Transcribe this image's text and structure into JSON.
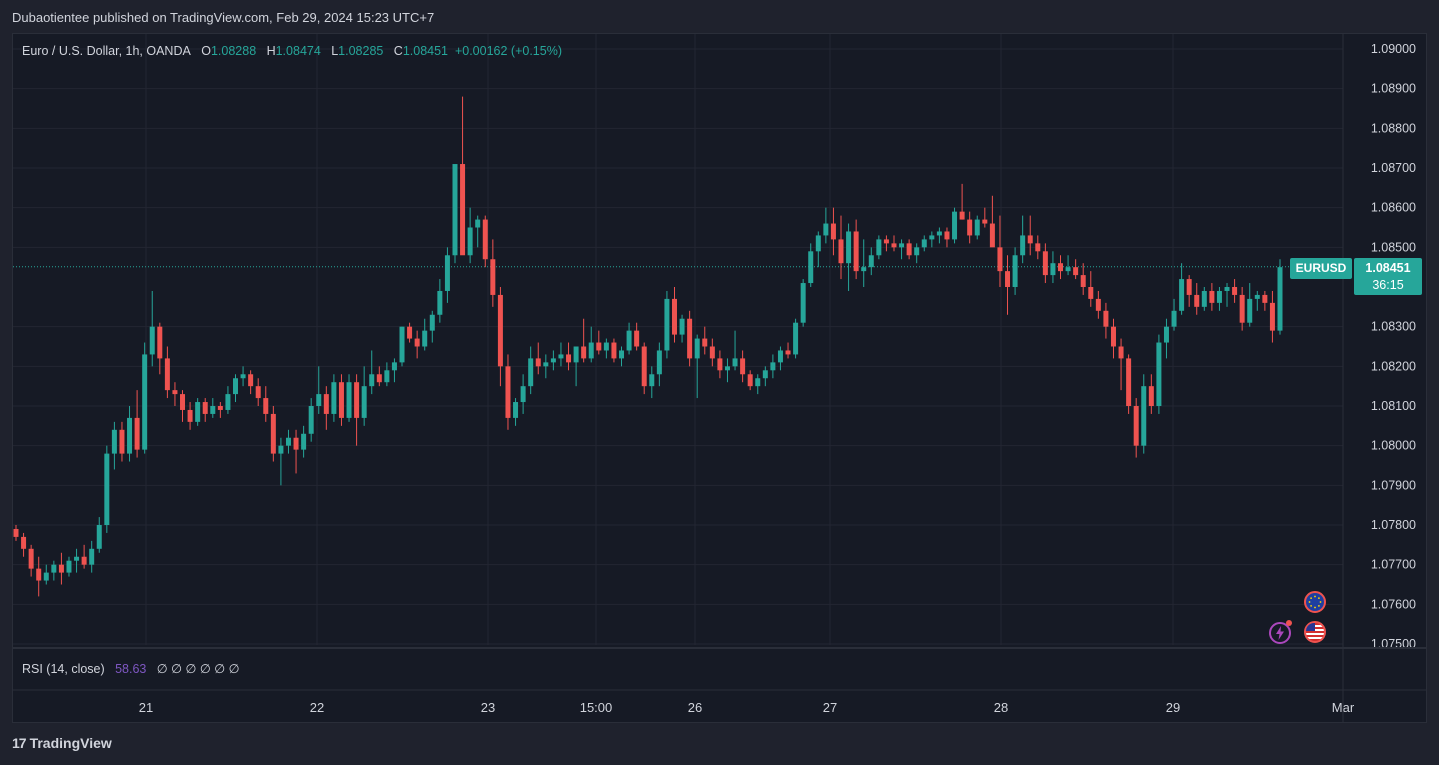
{
  "publisher_line": "Dubaotientee published on TradingView.com, Feb 29, 2024 15:23 UTC+7",
  "legend": {
    "symbol": "Euro / U.S. Dollar, 1h, OANDA",
    "o_label": "O",
    "o_value": "1.08288",
    "h_label": "H",
    "h_value": "1.08474",
    "l_label": "L",
    "l_value": "1.08285",
    "c_label": "C",
    "c_value": "1.08451",
    "change": "+0.00162 (+0.15%)"
  },
  "rsi": {
    "label": "RSI (14, close)",
    "value": "58.63",
    "placeholders": "∅ ∅ ∅ ∅ ∅ ∅"
  },
  "price_tag": {
    "symbol": "EURUSD",
    "price": "1.08451",
    "countdown": "36:15"
  },
  "footer": {
    "brand": "TradingView",
    "logo": "17"
  },
  "icons": {
    "flash": "flash-icon",
    "eu_flag": "eu-flag-icon",
    "us_flag": "us-flag-icon"
  },
  "colors": {
    "up": "#26a69a",
    "down": "#ef5350",
    "rsi": "#7e57c2",
    "bg": "#161a25"
  },
  "chart_data": {
    "type": "candlestick",
    "title": "Euro / U.S. Dollar, 1h, OANDA",
    "y_ticks": [
      "1.09000",
      "1.08900",
      "1.08800",
      "1.08700",
      "1.08600",
      "1.08500",
      "1.08300",
      "1.08200",
      "1.08100",
      "1.08000",
      "1.07900",
      "1.07800",
      "1.07700",
      "1.07600",
      "1.07500"
    ],
    "ylim": [
      1.075,
      1.09
    ],
    "x_ticks": [
      "21",
      "22",
      "23",
      "15:00",
      "26",
      "27",
      "28",
      "29",
      "Mar"
    ],
    "current_price": 1.08451,
    "grid": true,
    "series": [
      {
        "name": "EURUSD",
        "ohlc_path": [
          [
            1.0779,
            1.078,
            1.0776,
            1.0777
          ],
          [
            1.0777,
            1.0778,
            1.0772,
            1.0774
          ],
          [
            1.0774,
            1.0775,
            1.0767,
            1.0769
          ],
          [
            1.0769,
            1.0772,
            1.0762,
            1.0766
          ],
          [
            1.0766,
            1.077,
            1.0765,
            1.0768
          ],
          [
            1.0768,
            1.0771,
            1.0766,
            1.077
          ],
          [
            1.077,
            1.0773,
            1.0765,
            1.0768
          ],
          [
            1.0768,
            1.0772,
            1.0767,
            1.0771
          ],
          [
            1.0771,
            1.0774,
            1.0768,
            1.0772
          ],
          [
            1.0772,
            1.0775,
            1.0769,
            1.077
          ],
          [
            1.077,
            1.0776,
            1.0768,
            1.0774
          ],
          [
            1.0774,
            1.0782,
            1.0773,
            1.078
          ],
          [
            1.078,
            1.08,
            1.0778,
            1.0798
          ],
          [
            1.0798,
            1.0806,
            1.0794,
            1.0804
          ],
          [
            1.0804,
            1.0806,
            1.0796,
            1.0798
          ],
          [
            1.0798,
            1.081,
            1.0796,
            1.0807
          ],
          [
            1.0807,
            1.0814,
            1.0797,
            1.0799
          ],
          [
            1.0799,
            1.0826,
            1.0798,
            1.0823
          ],
          [
            1.0823,
            1.0839,
            1.082,
            1.083
          ],
          [
            1.083,
            1.0831,
            1.0818,
            1.0822
          ],
          [
            1.0822,
            1.0825,
            1.0812,
            1.0814
          ],
          [
            1.0814,
            1.0816,
            1.081,
            1.0813
          ],
          [
            1.0813,
            1.0814,
            1.0806,
            1.0809
          ],
          [
            1.0809,
            1.0811,
            1.0804,
            1.0806
          ],
          [
            1.0806,
            1.0812,
            1.0805,
            1.0811
          ],
          [
            1.0811,
            1.0812,
            1.0806,
            1.0808
          ],
          [
            1.0808,
            1.0812,
            1.0807,
            1.081
          ],
          [
            1.081,
            1.0811,
            1.0807,
            1.0809
          ],
          [
            1.0809,
            1.0815,
            1.0808,
            1.0813
          ],
          [
            1.0813,
            1.0818,
            1.0811,
            1.0817
          ],
          [
            1.0817,
            1.082,
            1.0815,
            1.0818
          ],
          [
            1.0818,
            1.0819,
            1.0813,
            1.0815
          ],
          [
            1.0815,
            1.0817,
            1.081,
            1.0812
          ],
          [
            1.0812,
            1.0815,
            1.0806,
            1.0808
          ],
          [
            1.0808,
            1.081,
            1.0796,
            1.0798
          ],
          [
            1.0798,
            1.0802,
            1.079,
            1.08
          ],
          [
            1.08,
            1.0804,
            1.0798,
            1.0802
          ],
          [
            1.0802,
            1.0804,
            1.0793,
            1.0799
          ],
          [
            1.0799,
            1.0805,
            1.0797,
            1.0803
          ],
          [
            1.0803,
            1.0812,
            1.0801,
            1.081
          ],
          [
            1.081,
            1.082,
            1.0808,
            1.0813
          ],
          [
            1.0813,
            1.0815,
            1.0804,
            1.0808
          ],
          [
            1.0808,
            1.0818,
            1.0806,
            1.0816
          ],
          [
            1.0816,
            1.0818,
            1.0805,
            1.0807
          ],
          [
            1.0807,
            1.0818,
            1.0806,
            1.0816
          ],
          [
            1.0816,
            1.0818,
            1.08,
            1.0807
          ],
          [
            1.0807,
            1.082,
            1.0805,
            1.0815
          ],
          [
            1.0815,
            1.0824,
            1.0813,
            1.0818
          ],
          [
            1.0818,
            1.082,
            1.0815,
            1.0816
          ],
          [
            1.0816,
            1.0821,
            1.0815,
            1.0819
          ],
          [
            1.0819,
            1.0822,
            1.0816,
            1.0821
          ],
          [
            1.0821,
            1.083,
            1.082,
            1.083
          ],
          [
            1.083,
            1.0831,
            1.0826,
            1.0827
          ],
          [
            1.0827,
            1.0829,
            1.0822,
            1.0825
          ],
          [
            1.0825,
            1.0832,
            1.0824,
            1.0829
          ],
          [
            1.0829,
            1.0834,
            1.0826,
            1.0833
          ],
          [
            1.0833,
            1.0842,
            1.0831,
            1.0839
          ],
          [
            1.0839,
            1.085,
            1.0836,
            1.0848
          ],
          [
            1.0848,
            1.0869,
            1.0846,
            1.0871
          ],
          [
            1.0871,
            1.0888,
            1.0867,
            1.0848
          ],
          [
            1.0848,
            1.086,
            1.0846,
            1.0855
          ],
          [
            1.0855,
            1.0858,
            1.085,
            1.0857
          ],
          [
            1.0857,
            1.0858,
            1.0845,
            1.0847
          ],
          [
            1.0847,
            1.0852,
            1.0835,
            1.0838
          ],
          [
            1.0838,
            1.084,
            1.0815,
            1.082
          ],
          [
            1.082,
            1.0823,
            1.0804,
            1.0807
          ],
          [
            1.0807,
            1.0812,
            1.0805,
            1.0811
          ],
          [
            1.0811,
            1.0818,
            1.0808,
            1.0815
          ],
          [
            1.0815,
            1.0825,
            1.0813,
            1.0822
          ],
          [
            1.0822,
            1.0826,
            1.0818,
            1.082
          ],
          [
            1.082,
            1.0823,
            1.0817,
            1.0821
          ],
          [
            1.0821,
            1.0824,
            1.0819,
            1.0822
          ],
          [
            1.0822,
            1.0826,
            1.082,
            1.0823
          ],
          [
            1.0823,
            1.0826,
            1.0819,
            1.0821
          ],
          [
            1.0821,
            1.0824,
            1.0815,
            1.0825
          ],
          [
            1.0825,
            1.0832,
            1.0821,
            1.0822
          ],
          [
            1.0822,
            1.083,
            1.0821,
            1.0826
          ],
          [
            1.0826,
            1.0829,
            1.0823,
            1.0824
          ],
          [
            1.0824,
            1.0827,
            1.0822,
            1.0826
          ],
          [
            1.0826,
            1.0827,
            1.0821,
            1.0822
          ],
          [
            1.0822,
            1.0825,
            1.082,
            1.0824
          ],
          [
            1.0824,
            1.0831,
            1.0823,
            1.0829
          ],
          [
            1.0829,
            1.0831,
            1.0824,
            1.0825
          ],
          [
            1.0825,
            1.0826,
            1.0813,
            1.0815
          ],
          [
            1.0815,
            1.082,
            1.0812,
            1.0818
          ],
          [
            1.0818,
            1.0826,
            1.0815,
            1.0824
          ],
          [
            1.0824,
            1.0839,
            1.0822,
            1.0837
          ],
          [
            1.0837,
            1.084,
            1.0826,
            1.0828
          ],
          [
            1.0828,
            1.0833,
            1.0826,
            1.0832
          ],
          [
            1.0832,
            1.0834,
            1.082,
            1.0822
          ],
          [
            1.0822,
            1.0828,
            1.0812,
            1.0827
          ],
          [
            1.0827,
            1.083,
            1.0823,
            1.0825
          ],
          [
            1.0825,
            1.0827,
            1.082,
            1.0822
          ],
          [
            1.0822,
            1.0824,
            1.0817,
            1.0819
          ],
          [
            1.0819,
            1.0822,
            1.0816,
            1.082
          ],
          [
            1.082,
            1.0829,
            1.0819,
            1.0822
          ],
          [
            1.0822,
            1.0824,
            1.0816,
            1.0818
          ],
          [
            1.0818,
            1.0819,
            1.0814,
            1.0815
          ],
          [
            1.0815,
            1.0818,
            1.0813,
            1.0817
          ],
          [
            1.0817,
            1.082,
            1.0815,
            1.0819
          ],
          [
            1.0819,
            1.0823,
            1.0817,
            1.0821
          ],
          [
            1.0821,
            1.0825,
            1.0819,
            1.0824
          ],
          [
            1.0824,
            1.0826,
            1.0822,
            1.0823
          ],
          [
            1.0823,
            1.0832,
            1.0822,
            1.0831
          ],
          [
            1.0831,
            1.0842,
            1.083,
            1.0841
          ],
          [
            1.0841,
            1.0851,
            1.084,
            1.0849
          ],
          [
            1.0849,
            1.0854,
            1.0845,
            1.0853
          ],
          [
            1.0853,
            1.086,
            1.0851,
            1.0856
          ],
          [
            1.0856,
            1.086,
            1.0848,
            1.0852
          ],
          [
            1.0852,
            1.0858,
            1.0842,
            1.0846
          ],
          [
            1.0846,
            1.0856,
            1.0839,
            1.0854
          ],
          [
            1.0854,
            1.0857,
            1.0842,
            1.0844
          ],
          [
            1.0844,
            1.0852,
            1.084,
            1.0845
          ],
          [
            1.0845,
            1.085,
            1.0843,
            1.0848
          ],
          [
            1.0848,
            1.0853,
            1.0847,
            1.0852
          ],
          [
            1.0852,
            1.0853,
            1.0849,
            1.0851
          ],
          [
            1.0851,
            1.0853,
            1.0849,
            1.085
          ],
          [
            1.085,
            1.0852,
            1.0847,
            1.0851
          ],
          [
            1.0851,
            1.0852,
            1.0847,
            1.0848
          ],
          [
            1.0848,
            1.0851,
            1.0846,
            1.085
          ],
          [
            1.085,
            1.0853,
            1.0849,
            1.0852
          ],
          [
            1.0852,
            1.0854,
            1.085,
            1.0853
          ],
          [
            1.0853,
            1.0855,
            1.0851,
            1.0854
          ],
          [
            1.0854,
            1.0855,
            1.085,
            1.0852
          ],
          [
            1.0852,
            1.086,
            1.0851,
            1.0859
          ],
          [
            1.0859,
            1.0866,
            1.0857,
            1.0857
          ],
          [
            1.0857,
            1.0859,
            1.0851,
            1.0853
          ],
          [
            1.0853,
            1.0858,
            1.0852,
            1.0857
          ],
          [
            1.0857,
            1.086,
            1.0855,
            1.0856
          ],
          [
            1.0856,
            1.0863,
            1.0852,
            1.085
          ],
          [
            1.085,
            1.0858,
            1.084,
            1.0844
          ],
          [
            1.0844,
            1.0848,
            1.0833,
            1.084
          ],
          [
            1.084,
            1.085,
            1.0838,
            1.0848
          ],
          [
            1.0848,
            1.0858,
            1.0846,
            1.0853
          ],
          [
            1.0853,
            1.0858,
            1.0848,
            1.0851
          ],
          [
            1.0851,
            1.0853,
            1.0847,
            1.0849
          ],
          [
            1.0849,
            1.0851,
            1.0841,
            1.0843
          ],
          [
            1.0843,
            1.0849,
            1.0841,
            1.0846
          ],
          [
            1.0846,
            1.0848,
            1.0842,
            1.0844
          ],
          [
            1.0844,
            1.0848,
            1.0843,
            1.0845
          ],
          [
            1.0845,
            1.0847,
            1.0842,
            1.0843
          ],
          [
            1.0843,
            1.0846,
            1.0838,
            1.084
          ],
          [
            1.084,
            1.0844,
            1.0835,
            1.0837
          ],
          [
            1.0837,
            1.0839,
            1.0832,
            1.0834
          ],
          [
            1.0834,
            1.0836,
            1.0827,
            1.083
          ],
          [
            1.083,
            1.0832,
            1.0822,
            1.0825
          ],
          [
            1.0825,
            1.0827,
            1.0814,
            1.0822
          ],
          [
            1.0822,
            1.0823,
            1.0808,
            1.081
          ],
          [
            1.081,
            1.0812,
            1.0797,
            1.08
          ],
          [
            1.08,
            1.0818,
            1.0798,
            1.0815
          ],
          [
            1.0815,
            1.0818,
            1.0808,
            1.081
          ],
          [
            1.081,
            1.0828,
            1.0808,
            1.0826
          ],
          [
            1.0826,
            1.0832,
            1.0822,
            1.083
          ],
          [
            1.083,
            1.0837,
            1.0829,
            1.0834
          ],
          [
            1.0834,
            1.0846,
            1.0833,
            1.0842
          ],
          [
            1.0842,
            1.0843,
            1.0835,
            1.0838
          ],
          [
            1.0838,
            1.0841,
            1.0833,
            1.0835
          ],
          [
            1.0835,
            1.084,
            1.0834,
            1.0839
          ],
          [
            1.0839,
            1.0841,
            1.0834,
            1.0836
          ],
          [
            1.0836,
            1.084,
            1.0834,
            1.0839
          ],
          [
            1.0839,
            1.0841,
            1.0835,
            1.084
          ],
          [
            1.084,
            1.0842,
            1.0836,
            1.0838
          ],
          [
            1.0838,
            1.084,
            1.0829,
            1.0831
          ],
          [
            1.0831,
            1.0841,
            1.083,
            1.0837
          ],
          [
            1.0837,
            1.0839,
            1.0834,
            1.0838
          ],
          [
            1.0838,
            1.0839,
            1.0834,
            1.0836
          ],
          [
            1.0836,
            1.0839,
            1.0826,
            1.0829
          ],
          [
            1.0829,
            1.0847,
            1.0828,
            1.0845
          ]
        ]
      }
    ]
  }
}
